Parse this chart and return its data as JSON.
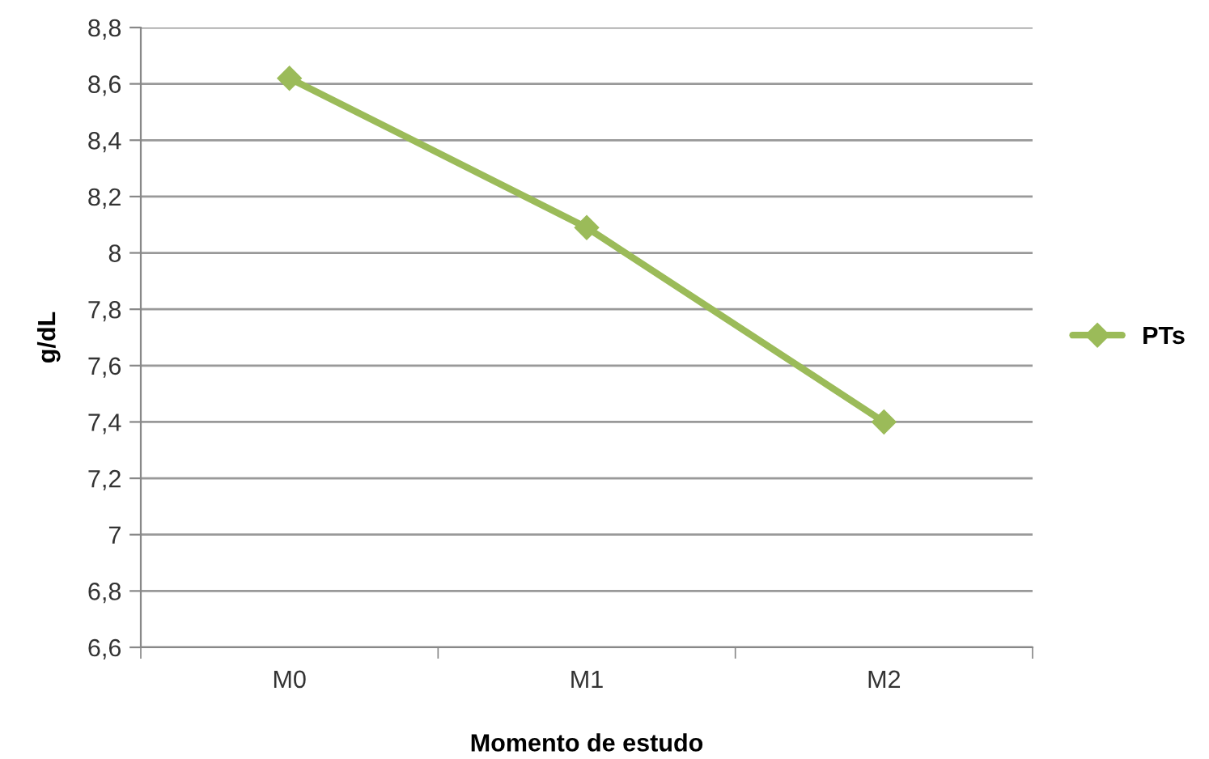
{
  "chart_data": {
    "type": "line",
    "xlabel": "Momento de estudo",
    "ylabel": "g/dL",
    "categories": [
      "M0",
      "M1",
      "M2"
    ],
    "series": [
      {
        "name": "PTs",
        "color": "#9bbb59",
        "values": [
          8.62,
          8.09,
          7.4
        ]
      }
    ],
    "ylim": [
      6.6,
      8.8
    ],
    "yticks": [
      {
        "value": 6.6,
        "label": "6,6"
      },
      {
        "value": 6.8,
        "label": "6,8"
      },
      {
        "value": 7,
        "label": "7"
      },
      {
        "value": 7.2,
        "label": "7,2"
      },
      {
        "value": 7.4,
        "label": "7,4"
      },
      {
        "value": 7.6,
        "label": "7,6"
      },
      {
        "value": 7.8,
        "label": "7,8"
      },
      {
        "value": 8,
        "label": "8"
      },
      {
        "value": 8.2,
        "label": "8,2"
      },
      {
        "value": 8.4,
        "label": "8,4"
      },
      {
        "value": 8.6,
        "label": "8,6"
      },
      {
        "value": 8.8,
        "label": "8,8"
      }
    ],
    "grid": "y",
    "legend": "right",
    "marker": "diamond",
    "line_style": "solid"
  }
}
